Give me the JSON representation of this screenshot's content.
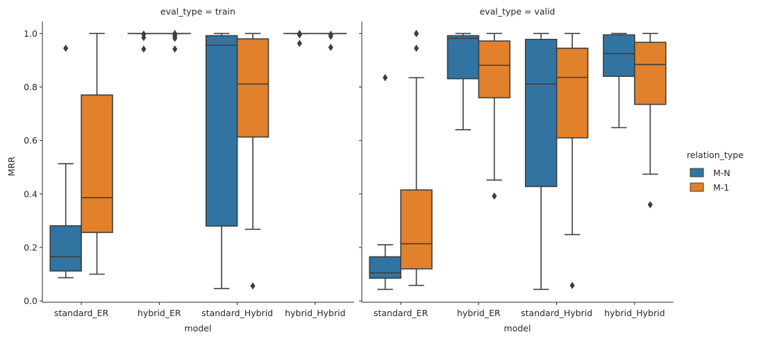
{
  "chart_data": {
    "type": "boxplot",
    "ylabel": "MRR",
    "xlabel": "model",
    "yticks": [
      0.0,
      0.2,
      0.4,
      0.6,
      0.8,
      1.0
    ],
    "ytick_labels": [
      "0.0",
      "0.2",
      "0.4",
      "0.6",
      "0.8",
      "1.0"
    ],
    "ylim": [
      -0.005,
      1.045
    ],
    "categories": [
      "standard_ER",
      "hybrid_ER",
      "standard_Hybrid",
      "hybrid_Hybrid"
    ],
    "legend": {
      "title": "relation_type",
      "position": "right",
      "entries": [
        {
          "name": "M-N",
          "color": "#3274a1"
        },
        {
          "name": "M-1",
          "color": "#e1812c"
        }
      ]
    },
    "panels": [
      {
        "title": "eval_type = train",
        "groups": [
          {
            "category": "standard_ER",
            "series": "M-N",
            "min": 0.087,
            "q1": 0.112,
            "median": 0.165,
            "q3": 0.281,
            "max": 0.513,
            "outliers": [
              0.945
            ]
          },
          {
            "category": "standard_ER",
            "series": "M-1",
            "min": 0.1,
            "q1": 0.256,
            "median": 0.386,
            "q3": 0.77,
            "max": 1.0,
            "outliers": []
          },
          {
            "category": "hybrid_ER",
            "series": "M-N",
            "min": 1.0,
            "q1": 1.0,
            "median": 1.0,
            "q3": 1.0,
            "max": 1.0,
            "outliers": [
              0.942,
              0.985,
              0.998
            ]
          },
          {
            "category": "hybrid_ER",
            "series": "M-1",
            "min": 1.0,
            "q1": 1.0,
            "median": 1.0,
            "q3": 1.0,
            "max": 1.0,
            "outliers": [
              0.942,
              0.982,
              0.99,
              0.997,
              1.0
            ]
          },
          {
            "category": "standard_Hybrid",
            "series": "M-N",
            "min": 0.046,
            "q1": 0.28,
            "median": 0.956,
            "q3": 0.992,
            "max": 1.0,
            "outliers": []
          },
          {
            "category": "standard_Hybrid",
            "series": "M-1",
            "min": 0.268,
            "q1": 0.613,
            "median": 0.811,
            "q3": 0.98,
            "max": 1.0,
            "outliers": [
              0.056
            ]
          },
          {
            "category": "hybrid_Hybrid",
            "series": "M-N",
            "min": 1.0,
            "q1": 1.0,
            "median": 1.0,
            "q3": 1.0,
            "max": 1.0,
            "outliers": [
              0.963,
              0.995,
              1.0
            ]
          },
          {
            "category": "hybrid_Hybrid",
            "series": "M-1",
            "min": 1.0,
            "q1": 1.0,
            "median": 1.0,
            "q3": 1.0,
            "max": 1.0,
            "outliers": [
              0.948,
              0.99,
              0.997
            ]
          }
        ]
      },
      {
        "title": "eval_type = valid",
        "groups": [
          {
            "category": "standard_ER",
            "series": "M-N",
            "min": 0.043,
            "q1": 0.085,
            "median": 0.105,
            "q3": 0.165,
            "max": 0.21,
            "outliers": [
              0.835
            ]
          },
          {
            "category": "standard_ER",
            "series": "M-1",
            "min": 0.058,
            "q1": 0.12,
            "median": 0.214,
            "q3": 0.415,
            "max": 0.835,
            "outliers": [
              0.945,
              1.0,
              1.0
            ]
          },
          {
            "category": "hybrid_ER",
            "series": "M-N",
            "min": 0.64,
            "q1": 0.831,
            "median": 0.982,
            "q3": 0.992,
            "max": 1.0,
            "outliers": []
          },
          {
            "category": "hybrid_ER",
            "series": "M-1",
            "min": 0.452,
            "q1": 0.76,
            "median": 0.881,
            "q3": 0.972,
            "max": 1.0,
            "outliers": [
              0.392
            ]
          },
          {
            "category": "standard_Hybrid",
            "series": "M-N",
            "min": 0.043,
            "q1": 0.428,
            "median": 0.811,
            "q3": 0.978,
            "max": 1.0,
            "outliers": []
          },
          {
            "category": "standard_Hybrid",
            "series": "M-1",
            "min": 0.248,
            "q1": 0.61,
            "median": 0.836,
            "q3": 0.945,
            "max": 1.0,
            "outliers": [
              0.058
            ]
          },
          {
            "category": "hybrid_Hybrid",
            "series": "M-N",
            "min": 0.648,
            "q1": 0.84,
            "median": 0.925,
            "q3": 0.995,
            "max": 1.0,
            "outliers": []
          },
          {
            "category": "hybrid_Hybrid",
            "series": "M-1",
            "min": 0.474,
            "q1": 0.735,
            "median": 0.884,
            "q3": 0.967,
            "max": 1.0,
            "outliers": [
              0.36
            ]
          }
        ]
      }
    ]
  }
}
